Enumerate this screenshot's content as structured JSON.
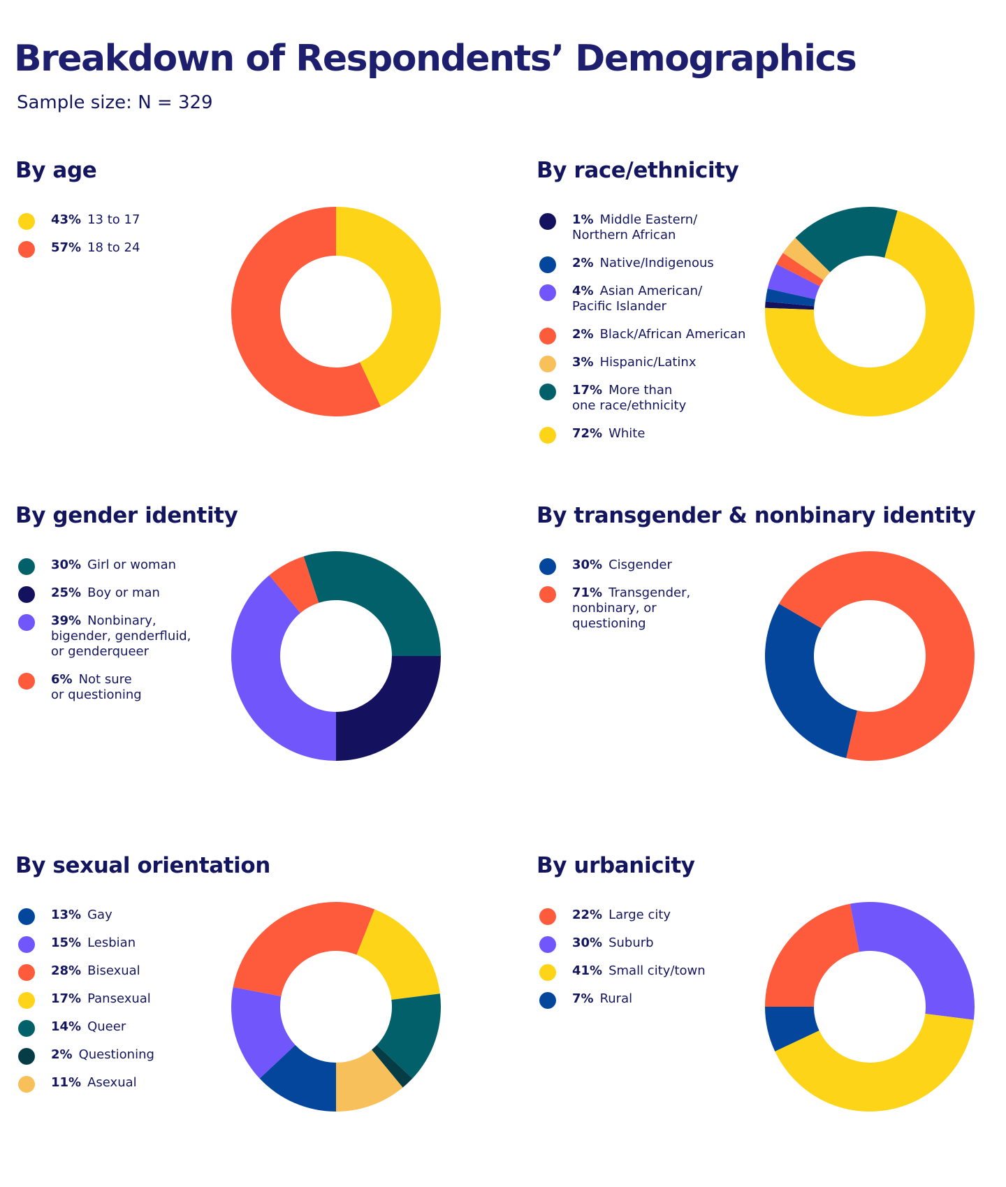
{
  "title": "Breakdown of Respondents’ Demographics",
  "subtitle": "Sample size: N = 329",
  "colors": {
    "yellow": "#fdd417",
    "orange_red": "#fe5a3c",
    "navy": "#14115e",
    "blue": "#03469b",
    "purple": "#7056fb",
    "light_orange": "#f8c05a",
    "teal": "#01606a",
    "dark_teal": "#053c46"
  },
  "chart_data": [
    {
      "type": "pie",
      "title": "By age",
      "categories": [
        "13 to 17",
        "18 to 24"
      ],
      "values": [
        43,
        57
      ],
      "labels": [
        "43%",
        "57%"
      ],
      "colors": [
        "#fdd417",
        "#fe5a3c"
      ]
    },
    {
      "type": "pie",
      "title": "By race/ethnicity",
      "categories": [
        "Middle Eastern/\nNorthern African",
        "Native/Indigenous",
        "Asian American/\nPacific Islander",
        "Black/African American",
        "Hispanic/Latinx",
        "More than\none race/ethnicity",
        "White"
      ],
      "values": [
        1,
        2,
        4,
        2,
        3,
        17,
        72
      ],
      "labels": [
        "1%",
        "2%",
        "4%",
        "2%",
        "3%",
        "17%",
        "72%"
      ],
      "colors": [
        "#14115e",
        "#03469b",
        "#7056fb",
        "#fe5a3c",
        "#f8c05a",
        "#01606a",
        "#fdd417"
      ]
    },
    {
      "type": "pie",
      "title": "By gender identity",
      "categories": [
        "Girl or woman",
        "Boy or man",
        "Nonbinary,\nbigender, genderfluid,\nor genderqueer",
        "Not sure\nor questioning"
      ],
      "values": [
        30,
        25,
        39,
        6
      ],
      "labels": [
        "30%",
        "25%",
        "39%",
        "6%"
      ],
      "colors": [
        "#01606a",
        "#14115e",
        "#7056fb",
        "#fe5a3c"
      ]
    },
    {
      "type": "pie",
      "title": "By transgender & nonbinary identity",
      "categories": [
        "Cisgender",
        "Transgender,\nnonbinary, or\nquestioning"
      ],
      "values": [
        30,
        71
      ],
      "labels": [
        "30%",
        "71%"
      ],
      "colors": [
        "#03469b",
        "#fe5a3c"
      ]
    },
    {
      "type": "pie",
      "title": "By sexual orientation",
      "categories": [
        "Gay",
        "Lesbian",
        "Bisexual",
        "Pansexual",
        "Queer",
        "Questioning",
        "Asexual"
      ],
      "values": [
        13,
        15,
        28,
        17,
        14,
        2,
        11
      ],
      "labels": [
        "13%",
        "15%",
        "28%",
        "17%",
        "14%",
        "2%",
        "11%"
      ],
      "colors": [
        "#03469b",
        "#7056fb",
        "#fe5a3c",
        "#fdd417",
        "#01606a",
        "#053c46",
        "#f8c05a"
      ]
    },
    {
      "type": "pie",
      "title": "By urbanicity",
      "categories": [
        "Large city",
        "Suburb",
        "Small city/town",
        "Rural"
      ],
      "values": [
        22,
        30,
        41,
        7
      ],
      "labels": [
        "22%",
        "30%",
        "41%",
        "7%"
      ],
      "colors": [
        "#fe5a3c",
        "#7056fb",
        "#fdd417",
        "#03469b"
      ]
    }
  ]
}
